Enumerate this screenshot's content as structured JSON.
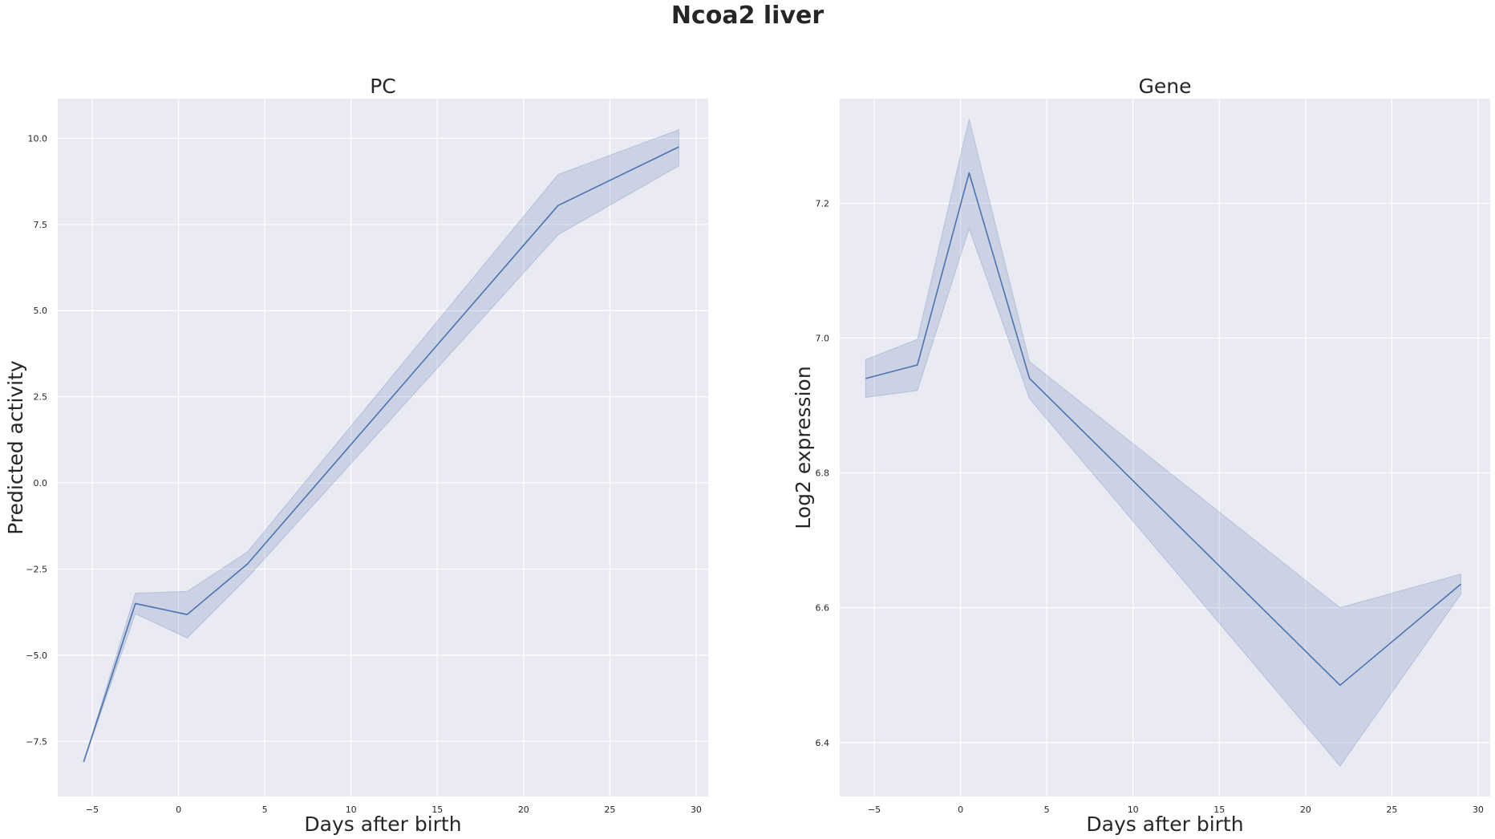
{
  "figure": {
    "title": "Ncoa2 liver"
  },
  "colors": {
    "plot_background": "#eaeaf2",
    "grid": "#ffffff",
    "line": "#4c72b0",
    "band": "#4c72b0",
    "text": "#262626"
  },
  "chart_data": [
    {
      "type": "line",
      "title": "PC",
      "xlabel": "Days after birth",
      "ylabel": "Predicted activity",
      "xlim": [
        -7,
        30.7
      ],
      "ylim": [
        -9.1,
        11.15
      ],
      "xticks": [
        -5,
        0,
        5,
        10,
        15,
        20,
        25,
        30
      ],
      "yticks": [
        -7.5,
        -5.0,
        -2.5,
        0.0,
        2.5,
        5.0,
        7.5,
        10.0
      ],
      "xtick_labels": [
        "−5",
        "0",
        "5",
        "10",
        "15",
        "20",
        "25",
        "30"
      ],
      "ytick_labels": [
        "−7.5",
        "−5.0",
        "−2.5",
        "0.0",
        "2.5",
        "5.0",
        "7.5",
        "10.0"
      ],
      "grid": true,
      "series": [
        {
          "x": [
            -5.5,
            -2.5,
            0.5,
            4,
            22,
            29
          ],
          "y": [
            -8.1,
            -3.5,
            -3.82,
            -2.35,
            8.05,
            9.75
          ],
          "ci_low": [
            -8.1,
            -3.8,
            -4.5,
            -2.75,
            7.2,
            9.2
          ],
          "ci_high": [
            -8.1,
            -3.2,
            -3.15,
            -2.0,
            8.95,
            10.25
          ]
        }
      ]
    },
    {
      "type": "line",
      "title": "Gene",
      "xlabel": "Days after birth",
      "ylabel": "Log2 expression",
      "xlim": [
        -7,
        30.7
      ],
      "ylim": [
        6.32,
        7.355
      ],
      "xticks": [
        -5,
        0,
        5,
        10,
        15,
        20,
        25,
        30
      ],
      "yticks": [
        6.4,
        6.6,
        6.8,
        7.0,
        7.2
      ],
      "xtick_labels": [
        "−5",
        "0",
        "5",
        "10",
        "15",
        "20",
        "25",
        "30"
      ],
      "ytick_labels": [
        "6.4",
        "6.6",
        "6.8",
        "7.0",
        "7.2"
      ],
      "grid": true,
      "series": [
        {
          "x": [
            -5.5,
            -2.5,
            0.5,
            4,
            22,
            29
          ],
          "y": [
            6.94,
            6.96,
            7.245,
            6.94,
            6.485,
            6.635
          ],
          "ci_low": [
            6.912,
            6.922,
            7.162,
            6.91,
            6.365,
            6.62
          ],
          "ci_high": [
            6.968,
            6.998,
            7.325,
            6.965,
            6.6,
            6.65
          ]
        }
      ]
    }
  ]
}
